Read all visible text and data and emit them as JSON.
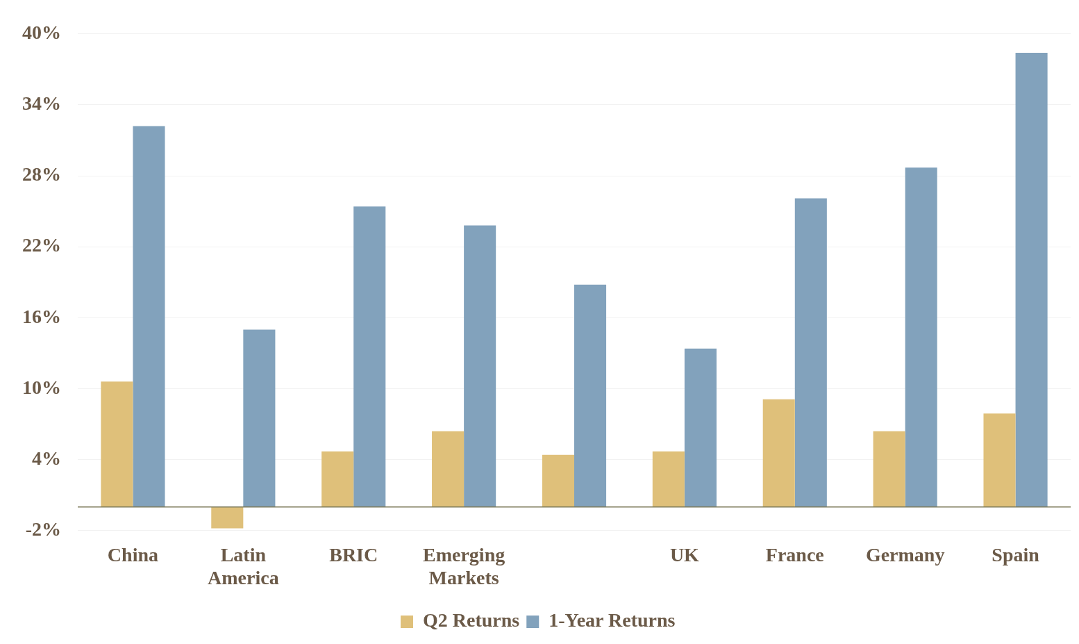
{
  "chart_data": {
    "type": "bar",
    "categories": [
      "China",
      "Latin America",
      "BRIC",
      "Emerging Markets",
      null,
      "UK",
      "France",
      "Germany",
      "Spain"
    ],
    "series": [
      {
        "name": "Q2 Returns",
        "color": "#dfc07a",
        "values": [
          10.6,
          -1.8,
          4.7,
          6.4,
          4.4,
          4.7,
          9.1,
          6.4,
          7.9
        ]
      },
      {
        "name": "1-Year Returns",
        "color": "#82a2bc",
        "values": [
          32.2,
          15.0,
          25.4,
          23.8,
          18.8,
          13.4,
          26.1,
          28.7,
          38.4
        ]
      }
    ],
    "ylim": [
      -2,
      40
    ],
    "yticks": [
      {
        "value": -2,
        "label": "-2%"
      },
      {
        "value": 4,
        "label": "4%"
      },
      {
        "value": 10,
        "label": "10%"
      },
      {
        "value": 16,
        "label": "16%"
      },
      {
        "value": 22,
        "label": "22%"
      },
      {
        "value": 28,
        "label": "28%"
      },
      {
        "value": 34,
        "label": "34%"
      },
      {
        "value": 40,
        "label": "40%"
      }
    ],
    "grid": "y",
    "legend": "bottom"
  }
}
